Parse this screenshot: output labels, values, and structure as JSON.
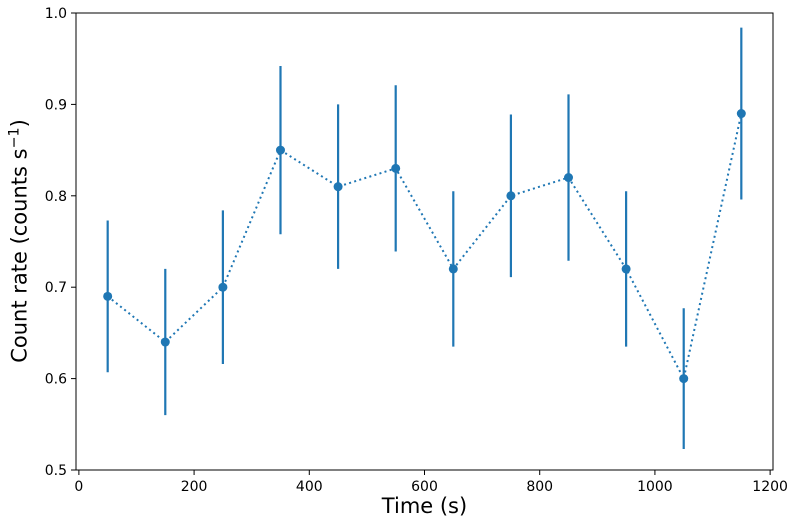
{
  "figure": {
    "background_color": "#ffffff",
    "accent_color": "#1f77b4",
    "axis_color": "#000000",
    "title": ""
  },
  "chart_data": {
    "type": "line",
    "subtype": "errorbar-scatter",
    "title": "",
    "xlabel": "Time (s)",
    "ylabel": "Count rate (counts s⁻¹)",
    "ylabel_parts": {
      "prefix": "Count rate (counts s",
      "superscript": "−1",
      "suffix": ")"
    },
    "x": [
      50,
      150,
      250,
      350,
      450,
      550,
      650,
      750,
      850,
      950,
      1050,
      1150
    ],
    "y": [
      0.69,
      0.64,
      0.7,
      0.85,
      0.81,
      0.83,
      0.72,
      0.8,
      0.82,
      0.72,
      0.6,
      0.89
    ],
    "yerr": [
      0.083,
      0.08,
      0.084,
      0.092,
      0.09,
      0.091,
      0.085,
      0.089,
      0.091,
      0.085,
      0.077,
      0.094
    ],
    "xlim": [
      -5,
      1205
    ],
    "ylim": [
      0.5,
      1.0
    ],
    "xticks": [
      0,
      200,
      400,
      600,
      800,
      1000,
      1200
    ],
    "xtick_labels": [
      "0",
      "200",
      "400",
      "600",
      "800",
      "1000",
      "1200"
    ],
    "yticks": [
      0.5,
      0.6,
      0.7,
      0.8,
      0.9,
      1.0
    ],
    "ytick_labels": [
      "0.5",
      "0.6",
      "0.7",
      "0.8",
      "0.9",
      "1.0"
    ],
    "grid": false,
    "legend": "none",
    "line_color": "#1f77b4",
    "marker": "circle",
    "line_style": "dotted"
  }
}
